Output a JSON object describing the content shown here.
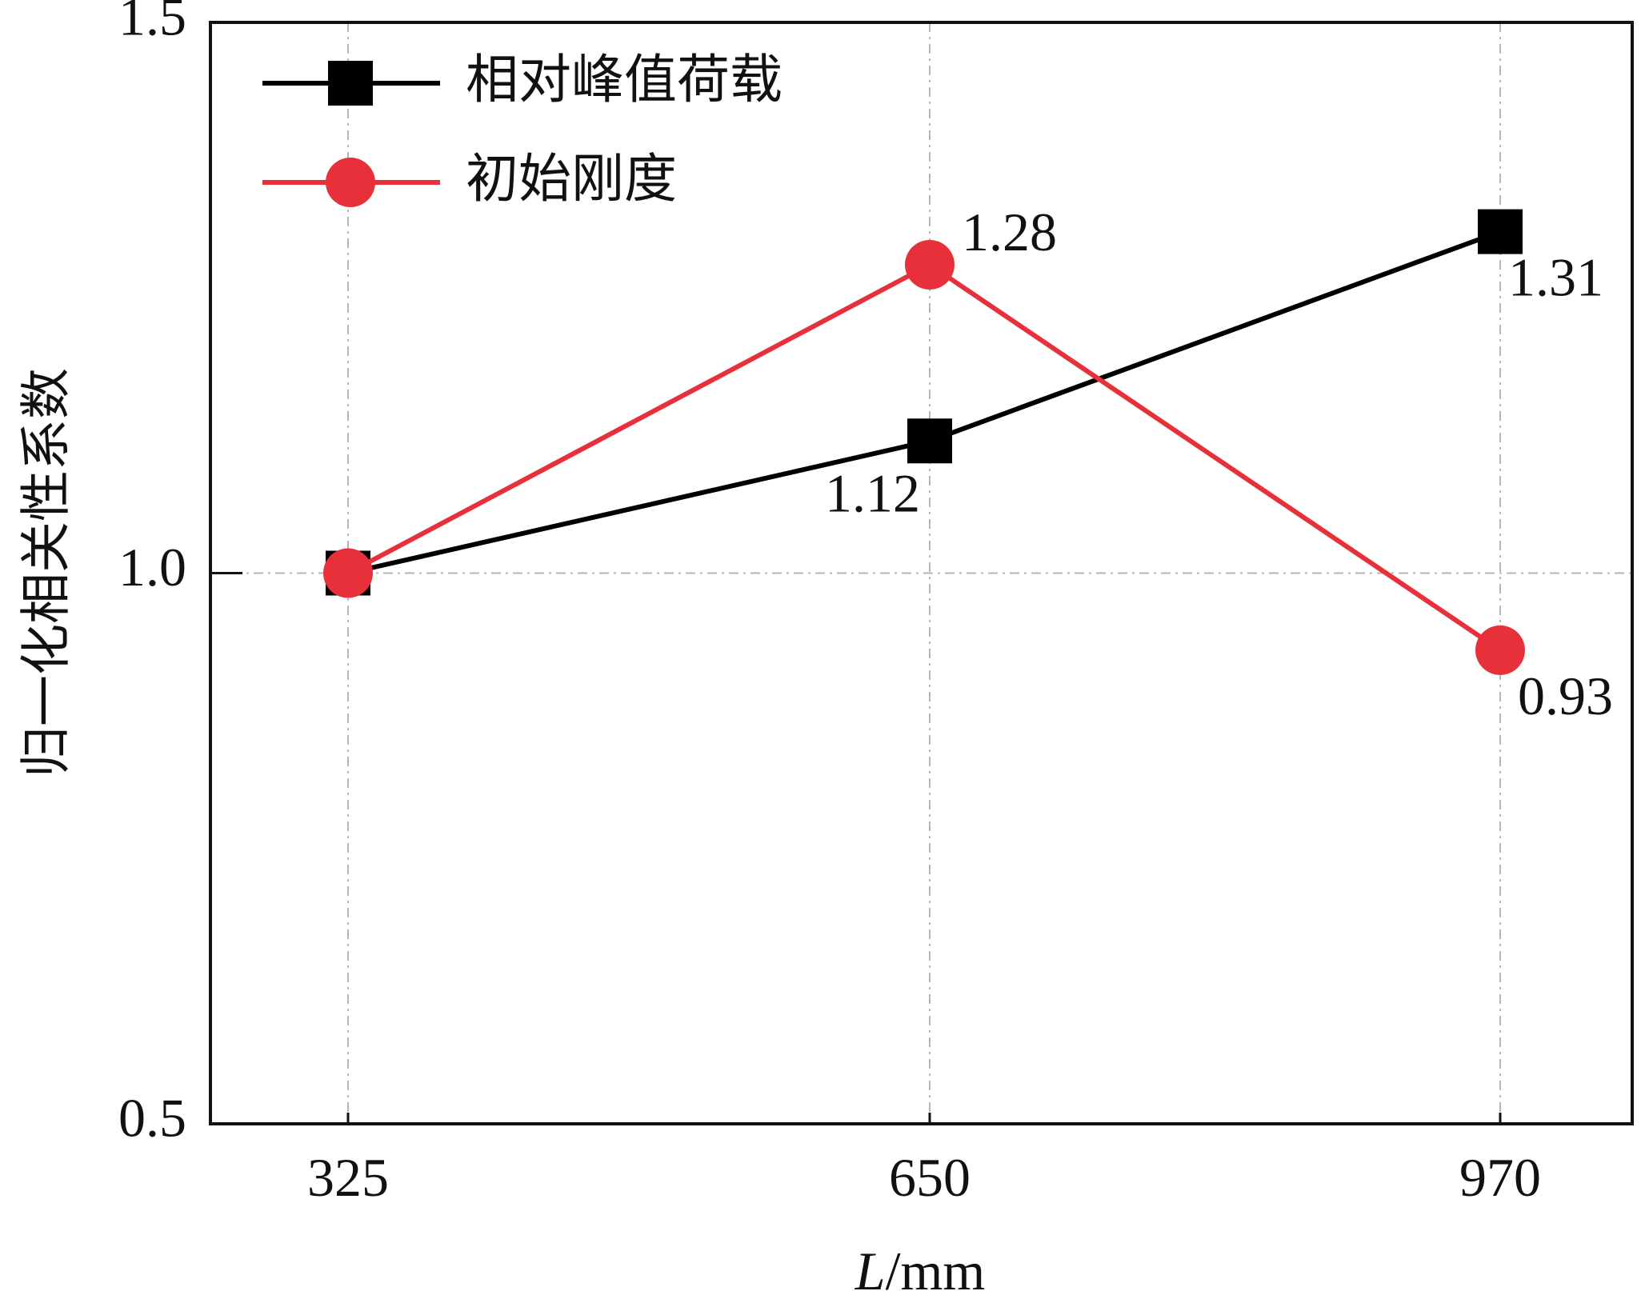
{
  "chart_data": {
    "type": "line",
    "x": [
      325,
      650,
      970
    ],
    "xticks": [
      "325",
      "650",
      "970"
    ],
    "yticks": [
      "0.5",
      "1.0",
      "1.5"
    ],
    "ylim": [
      0.5,
      1.5
    ],
    "grid": true,
    "legend_position": "top-left",
    "xlabel_italic": "L",
    "xlabel_unit": "/mm",
    "ylabel": "归一化相关性系数",
    "series": [
      {
        "name": "相对峰值荷载",
        "marker": "square",
        "color": "#000000",
        "values": [
          1.0,
          1.12,
          1.31
        ],
        "labels": [
          "",
          "1.12",
          "1.31"
        ]
      },
      {
        "name": "初始刚度",
        "marker": "circle",
        "color": "#e8303a",
        "values": [
          1.0,
          1.28,
          0.93
        ],
        "labels": [
          "",
          "1.28",
          "0.93"
        ]
      }
    ]
  }
}
